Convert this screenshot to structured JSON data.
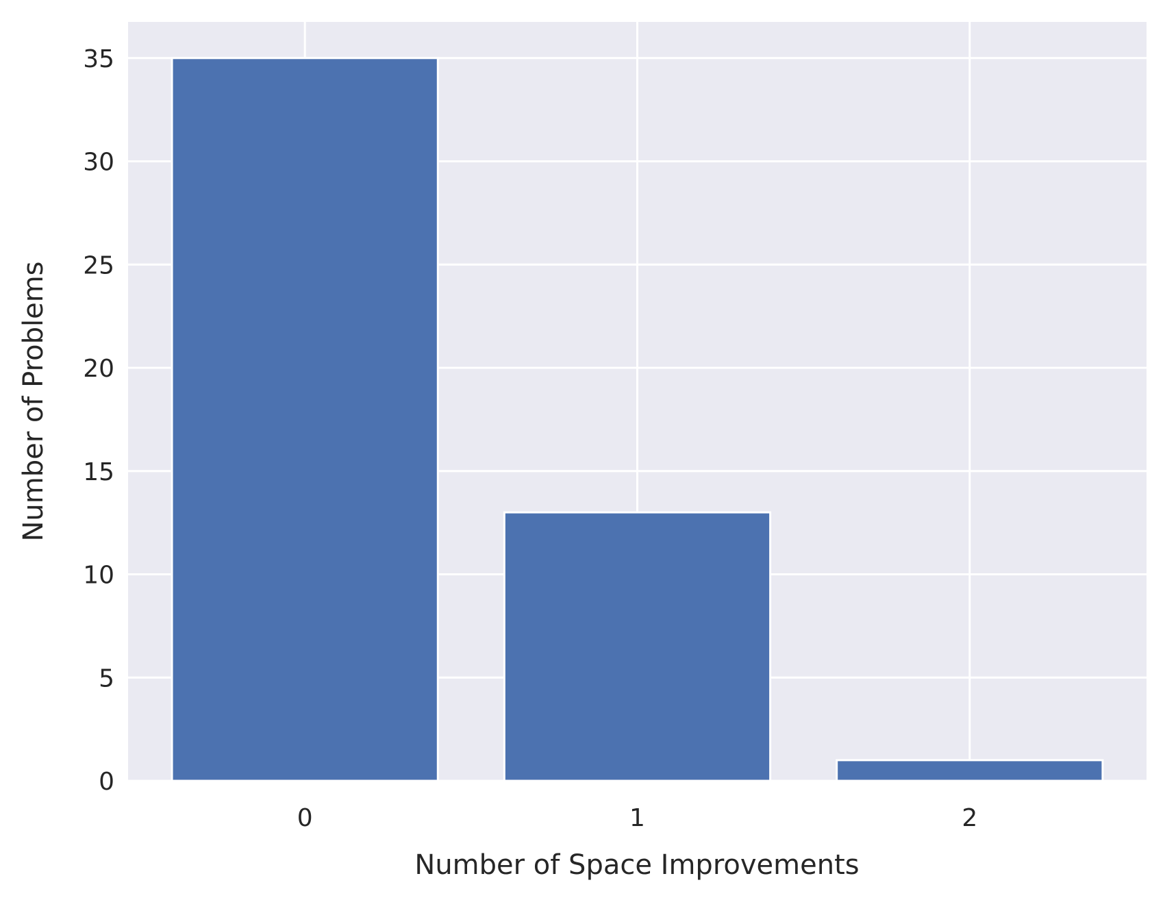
{
  "chart_data": {
    "type": "bar",
    "categories": [
      "0",
      "1",
      "2"
    ],
    "values": [
      35,
      13,
      1
    ],
    "xlabel": "Number of Space Improvements",
    "ylabel": "Number of Problems",
    "ylim": [
      0,
      36.75
    ],
    "yticks": [
      "0",
      "5",
      "10",
      "15",
      "20",
      "25",
      "30",
      "35"
    ],
    "grid": true,
    "bar_color": "#4c72b0",
    "background_color": "#eaeaf2",
    "grid_color": "#ffffff"
  }
}
